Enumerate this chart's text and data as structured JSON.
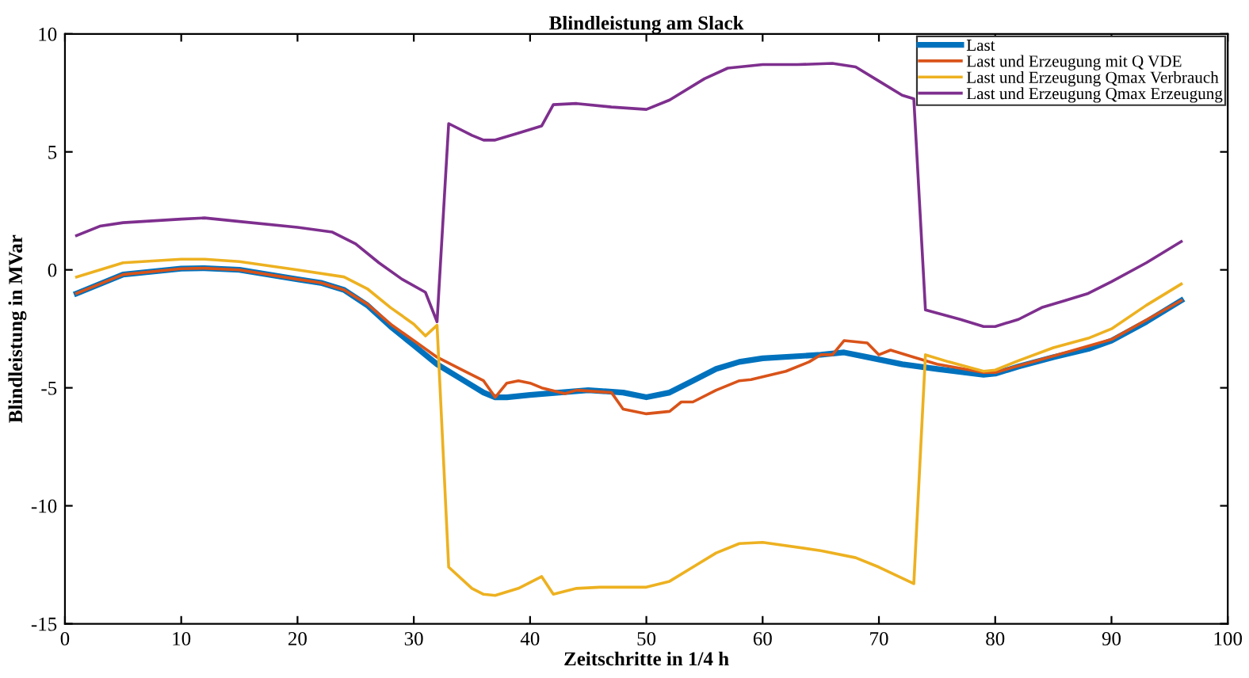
{
  "chart_data": {
    "type": "line",
    "title": "Blindleistung am Slack",
    "xlabel": "Zeitschritte in 1/4 h",
    "ylabel": "Blindleistung in MVar",
    "xlim": [
      0,
      100
    ],
    "xticks": [
      0,
      10,
      20,
      30,
      40,
      50,
      60,
      70,
      80,
      90,
      100
    ],
    "ylim": [
      -15,
      10
    ],
    "yticks": [
      -15,
      -10,
      -5,
      0,
      5,
      10
    ],
    "grid": false,
    "legend": "top right",
    "line_style": "solid",
    "marker": "none",
    "series": [
      {
        "name": "Last",
        "color": "#0072bd",
        "x": [
          1,
          5,
          10,
          12,
          15,
          20,
          22,
          24,
          26,
          28,
          30,
          32,
          34,
          36,
          37,
          38,
          40,
          45,
          48,
          50,
          52,
          54,
          56,
          58,
          60,
          65,
          67,
          69,
          72,
          75,
          79,
          80,
          82,
          85,
          88,
          90,
          93,
          96
        ],
        "values": [
          -1.0,
          -0.2,
          0.05,
          0.07,
          0.0,
          -0.4,
          -0.55,
          -0.85,
          -1.5,
          -2.4,
          -3.2,
          -4.0,
          -4.6,
          -5.2,
          -5.4,
          -5.4,
          -5.3,
          -5.1,
          -5.2,
          -5.4,
          -5.2,
          -4.7,
          -4.2,
          -3.9,
          -3.75,
          -3.6,
          -3.5,
          -3.7,
          -4.0,
          -4.2,
          -4.45,
          -4.4,
          -4.1,
          -3.7,
          -3.35,
          -3.0,
          -2.2,
          -1.3
        ]
      },
      {
        "name": "Last und Erzeugung mit Q VDE",
        "color": "#d95319",
        "x": [
          1,
          5,
          10,
          12,
          15,
          20,
          22,
          24,
          26,
          28,
          30,
          32,
          34,
          36,
          37,
          38,
          39,
          40,
          41,
          43,
          44,
          47,
          48,
          50,
          52,
          53,
          54,
          56,
          58,
          59,
          62,
          64,
          65,
          66,
          67,
          69,
          70,
          71,
          73,
          75,
          79,
          80,
          85,
          90,
          96
        ],
        "values": [
          -1.0,
          -0.2,
          0.05,
          0.07,
          0.0,
          -0.4,
          -0.55,
          -0.85,
          -1.45,
          -2.3,
          -3.0,
          -3.7,
          -4.2,
          -4.7,
          -5.4,
          -4.8,
          -4.7,
          -4.8,
          -5.0,
          -5.25,
          -5.1,
          -5.2,
          -5.9,
          -6.1,
          -6.0,
          -5.6,
          -5.6,
          -5.1,
          -4.7,
          -4.65,
          -4.3,
          -3.9,
          -3.6,
          -3.6,
          -3.0,
          -3.1,
          -3.6,
          -3.4,
          -3.7,
          -4.0,
          -4.35,
          -4.35,
          -3.65,
          -2.95,
          -1.3
        ]
      },
      {
        "name": "Last und Erzeugung Qmax Verbrauch",
        "color": "#edb120",
        "x": [
          1,
          5,
          10,
          12,
          15,
          20,
          24,
          26,
          28,
          30,
          31,
          32,
          33,
          35,
          36,
          37,
          39,
          41,
          42,
          44,
          46,
          50,
          52,
          54,
          56,
          58,
          60,
          65,
          68,
          70,
          73,
          74,
          76,
          79,
          80,
          82,
          85,
          88,
          90,
          93,
          96
        ],
        "values": [
          -0.3,
          0.3,
          0.45,
          0.45,
          0.35,
          0.0,
          -0.3,
          -0.8,
          -1.6,
          -2.3,
          -2.8,
          -2.35,
          -12.6,
          -13.5,
          -13.75,
          -13.8,
          -13.5,
          -13.0,
          -13.75,
          -13.5,
          -13.45,
          -13.45,
          -13.2,
          -12.6,
          -12.0,
          -11.6,
          -11.55,
          -11.9,
          -12.2,
          -12.6,
          -13.3,
          -3.6,
          -3.9,
          -4.3,
          -4.25,
          -3.85,
          -3.3,
          -2.9,
          -2.5,
          -1.5,
          -0.6
        ]
      },
      {
        "name": "Last und Erzeugung Qmax Erzeugung",
        "color": "#7e2f8e",
        "x": [
          1,
          3,
          5,
          10,
          12,
          15,
          20,
          23,
          25,
          27,
          29,
          31,
          32,
          33,
          35,
          36,
          37,
          39,
          41,
          42,
          44,
          47,
          50,
          52,
          55,
          57,
          60,
          63,
          66,
          68,
          70,
          72,
          73,
          74,
          77,
          79,
          80,
          82,
          84,
          86,
          88,
          90,
          93,
          96
        ],
        "values": [
          1.45,
          1.85,
          2.0,
          2.15,
          2.2,
          2.05,
          1.8,
          1.6,
          1.1,
          0.3,
          -0.4,
          -0.95,
          -2.2,
          6.2,
          5.7,
          5.5,
          5.5,
          5.8,
          6.1,
          7.0,
          7.05,
          6.9,
          6.8,
          7.2,
          8.1,
          8.55,
          8.7,
          8.7,
          8.75,
          8.6,
          8.0,
          7.4,
          7.25,
          -1.7,
          -2.1,
          -2.4,
          -2.4,
          -2.1,
          -1.6,
          -1.3,
          -1.0,
          -0.5,
          0.3,
          1.2
        ]
      }
    ]
  }
}
